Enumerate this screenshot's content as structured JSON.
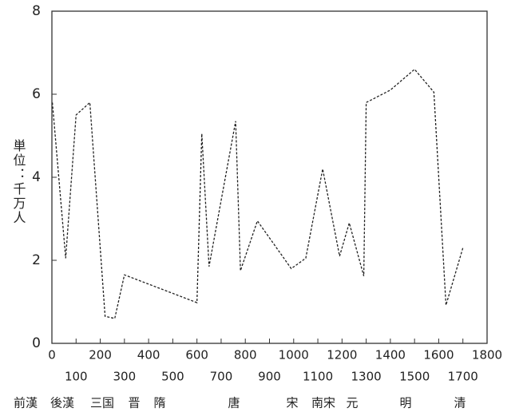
{
  "chart_data": {
    "type": "line",
    "y_label": "単位：千万人",
    "x": [
      2,
      57,
      100,
      157,
      220,
      260,
      300,
      600,
      620,
      650,
      760,
      780,
      850,
      990,
      1050,
      1120,
      1190,
      1230,
      1290,
      1300,
      1400,
      1500,
      1580,
      1630,
      1700
    ],
    "series": [
      {
        "color": "#222222",
        "values": [
          5.8,
          2.05,
          5.5,
          5.8,
          0.65,
          0.6,
          1.65,
          0.98,
          5.05,
          1.85,
          5.35,
          1.75,
          2.95,
          1.8,
          2.05,
          4.2,
          2.1,
          2.9,
          1.62,
          5.8,
          6.1,
          6.6,
          6.05,
          0.92,
          2.3
        ]
      }
    ],
    "xlim": [
      0,
      1800
    ],
    "xticks": [
      0,
      100,
      200,
      300,
      400,
      500,
      600,
      700,
      800,
      900,
      1000,
      1100,
      1200,
      1300,
      1400,
      1500,
      1600,
      1700,
      1800
    ],
    "ylim": [
      0,
      8
    ],
    "yticks": [
      0,
      2,
      4,
      6,
      8
    ],
    "dynasties": [
      "前漢",
      "後漢",
      "三国",
      "晋",
      "隋",
      "唐",
      "宋",
      "南宋",
      "元",
      "明",
      "清"
    ]
  }
}
